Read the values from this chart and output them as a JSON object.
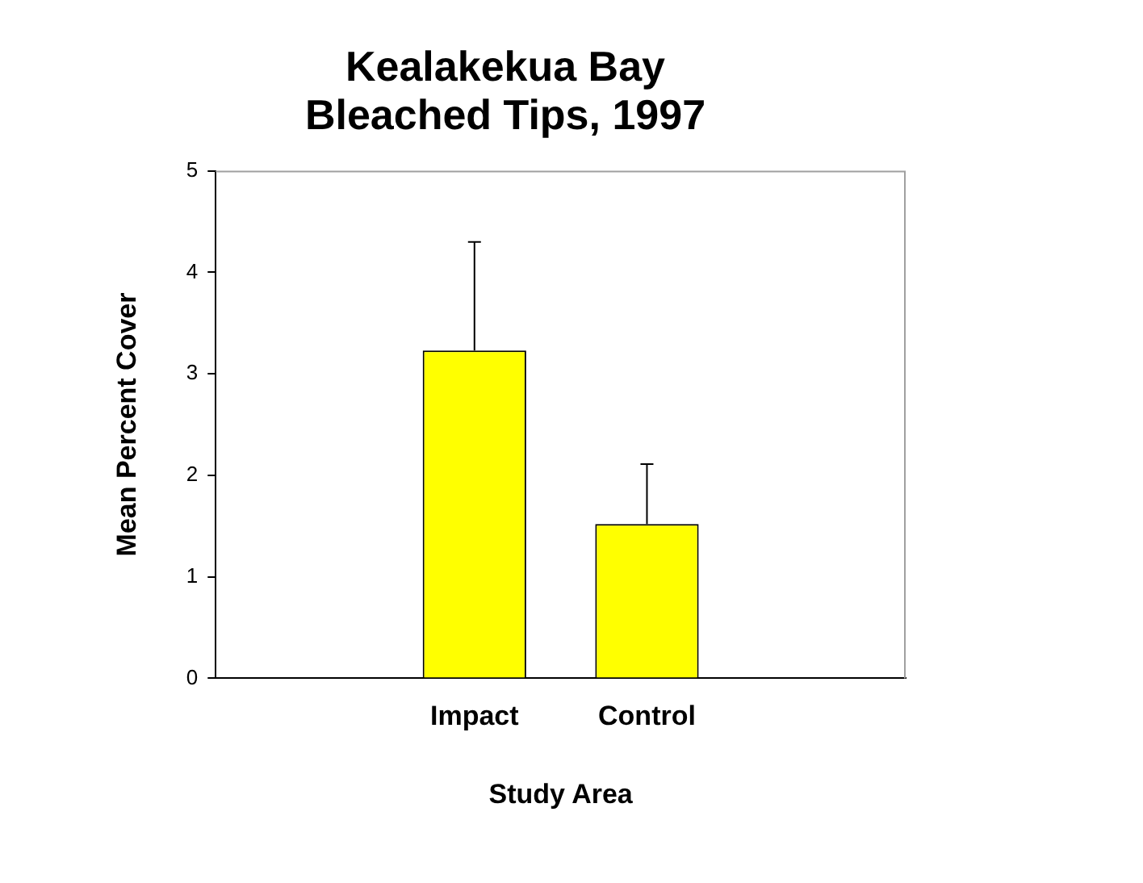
{
  "chart_data": {
    "type": "bar",
    "title": [
      "Kealakekua Bay",
      "Bleached Tips, 1997"
    ],
    "xlabel": "Study Area",
    "ylabel": "Mean Percent Cover",
    "categories": [
      "Impact",
      "Control"
    ],
    "values": [
      3.23,
      1.52
    ],
    "errors": [
      [
        3.23,
        4.3
      ],
      [
        1.52,
        2.11
      ]
    ],
    "color": "#ffff00",
    "ylim": [
      0,
      5
    ],
    "yticks": [
      0,
      1,
      2,
      3,
      4,
      5
    ],
    "grid": false,
    "legend": false
  }
}
